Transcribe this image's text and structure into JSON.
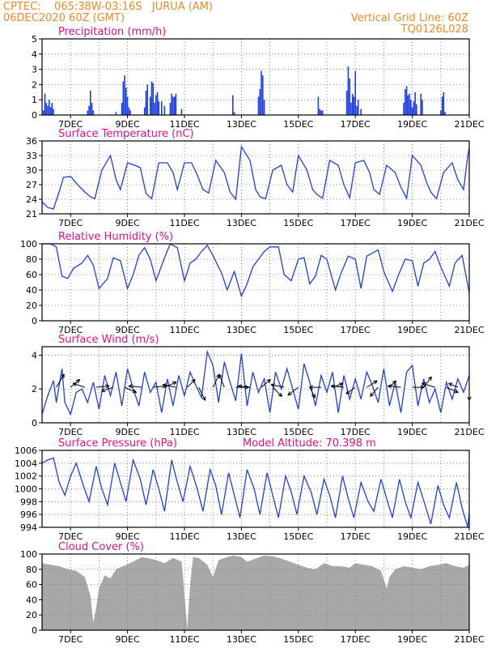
{
  "header": {
    "org_location": "CPTEC:    065:38W-03:16S   JURUA (AM)",
    "run_time": "06DEC2020 60Z (GMT)",
    "grid_note": "Vertical Grid Line: 60Z",
    "model_code": "TQ0126L028"
  },
  "colors": {
    "header_text": "#f08a24",
    "panel_title": "#e0108a",
    "series_line": "#1f3fe0",
    "bars": "#1f3fe0",
    "cloud_fill": "#a8a8a8",
    "arrows": "#000000"
  },
  "chart_data": [
    {
      "id": "precip",
      "type": "bar",
      "title": "Precipitation (mm/h)",
      "ylim": [
        0,
        5
      ],
      "yticks": [
        0,
        1,
        2,
        3,
        4,
        5
      ],
      "grid": true,
      "xticks": [
        "7DEC",
        "9DEC",
        "11DEC",
        "13DEC",
        "15DEC",
        "17DEC",
        "19DEC",
        "21DEC"
      ],
      "x_day_range": [
        6,
        21
      ],
      "day": [
        6.05,
        6.1,
        6.15,
        6.2,
        6.25,
        6.3,
        6.35,
        6.4,
        7.6,
        7.65,
        7.7,
        7.75,
        7.8,
        8.6,
        8.8,
        8.85,
        8.9,
        8.95,
        9.0,
        9.05,
        9.1,
        9.6,
        9.65,
        9.7,
        9.8,
        9.85,
        9.9,
        9.95,
        10.0,
        10.05,
        10.1,
        10.2,
        10.3,
        10.5,
        10.55,
        10.6,
        10.65,
        10.7,
        10.9,
        12.7,
        12.75,
        13.6,
        13.65,
        13.7,
        13.75,
        13.8,
        15.7,
        15.75,
        15.8,
        15.85,
        16.7,
        16.75,
        16.8,
        16.85,
        16.9,
        16.95,
        17.0,
        17.05,
        17.1,
        17.2,
        18.7,
        18.75,
        18.8,
        18.85,
        18.9,
        18.95,
        19.0,
        19.05,
        19.1,
        19.15,
        19.3,
        19.35,
        20.0,
        20.05,
        20.1,
        20.15
      ],
      "values": [
        0.3,
        1.4,
        0.8,
        0.6,
        1.0,
        0.5,
        0.8,
        0.4,
        0.3,
        0.6,
        1.6,
        0.8,
        0.3,
        0.2,
        0.8,
        2.2,
        2.6,
        1.8,
        1.2,
        0.5,
        0.3,
        0.5,
        1.6,
        2.0,
        1.2,
        2.2,
        2.1,
        0.8,
        1.3,
        1.5,
        0.9,
        0.9,
        0.6,
        0.8,
        1.4,
        1.2,
        1.2,
        1.4,
        0.4,
        1.3,
        0.2,
        1.2,
        1.7,
        2.9,
        2.6,
        1.0,
        1.2,
        0.4,
        0.3,
        0.3,
        1.6,
        3.2,
        2.4,
        0.8,
        1.4,
        1.2,
        2.9,
        0.6,
        1.0,
        0.4,
        0.8,
        1.7,
        1.9,
        1.3,
        1.4,
        1.0,
        0.5,
        0.9,
        1.5,
        0.7,
        1.4,
        1.0,
        0.3,
        1.2,
        1.5,
        0.2
      ]
    },
    {
      "id": "temp",
      "type": "line",
      "title": "Surface Temperature (nC)",
      "ylim": [
        21,
        36
      ],
      "yticks": [
        21,
        24,
        27,
        30,
        33,
        36
      ],
      "grid": true,
      "xticks": [
        "7DEC",
        "9DEC",
        "11DEC",
        "13DEC",
        "15DEC",
        "17DEC",
        "19DEC",
        "21DEC"
      ],
      "x_day_range": [
        6,
        21
      ],
      "day": [
        6.0,
        6.2,
        6.4,
        6.6,
        6.75,
        7.0,
        7.25,
        7.5,
        7.7,
        7.85,
        8.1,
        8.4,
        8.6,
        8.75,
        9.0,
        9.25,
        9.45,
        9.65,
        9.85,
        10.1,
        10.4,
        10.6,
        10.75,
        11.0,
        11.25,
        11.45,
        11.65,
        11.85,
        12.1,
        12.4,
        12.6,
        12.8,
        13.0,
        13.3,
        13.5,
        13.65,
        13.85,
        14.1,
        14.4,
        14.6,
        14.8,
        15.0,
        15.3,
        15.5,
        15.65,
        15.85,
        16.1,
        16.4,
        16.6,
        16.8,
        17.0,
        17.3,
        17.5,
        17.65,
        17.85,
        18.1,
        18.4,
        18.6,
        18.8,
        19.0,
        19.3,
        19.5,
        19.65,
        19.85,
        20.1,
        20.4,
        20.6,
        20.8,
        20.95,
        21.0
      ],
      "values": [
        23.5,
        22.3,
        22.0,
        25.5,
        28.5,
        28.7,
        27.0,
        25.5,
        24.5,
        24.1,
        30.0,
        33.0,
        28.0,
        26.0,
        31.5,
        31.0,
        30.5,
        25.2,
        24.1,
        31.5,
        31.5,
        29.5,
        26.0,
        31.5,
        31.5,
        29.0,
        26.0,
        25.3,
        32.0,
        29.5,
        25.5,
        24.0,
        34.8,
        32.0,
        26.0,
        24.5,
        24.1,
        30.0,
        31.0,
        27.0,
        25.5,
        33.0,
        30.0,
        26.0,
        25.0,
        24.2,
        32.0,
        31.0,
        27.0,
        24.3,
        31.5,
        32.0,
        29.5,
        26.0,
        25.0,
        31.0,
        29.5,
        26.5,
        24.2,
        33.0,
        31.0,
        27.5,
        25.5,
        24.1,
        29.5,
        31.5,
        28.0,
        26.0,
        33.0,
        34.5
      ]
    },
    {
      "id": "rh",
      "type": "line",
      "title": "Relative Humidity (%)",
      "ylim": [
        0,
        100
      ],
      "yticks": [
        0,
        20,
        40,
        60,
        80,
        100
      ],
      "grid": true,
      "xticks": [
        "7DEC",
        "9DEC",
        "11DEC",
        "13DEC",
        "15DEC",
        "17DEC",
        "19DEC",
        "21DEC"
      ],
      "x_day_range": [
        6,
        21
      ],
      "day": [
        6.0,
        6.3,
        6.5,
        6.7,
        6.9,
        7.1,
        7.4,
        7.6,
        7.8,
        8.0,
        8.3,
        8.5,
        8.75,
        9.0,
        9.2,
        9.4,
        9.6,
        9.8,
        10.0,
        10.3,
        10.5,
        10.75,
        11.0,
        11.2,
        11.4,
        11.6,
        11.8,
        12.0,
        12.3,
        12.5,
        12.75,
        13.0,
        13.2,
        13.4,
        13.6,
        13.8,
        14.0,
        14.3,
        14.5,
        14.75,
        15.0,
        15.2,
        15.4,
        15.6,
        15.8,
        16.0,
        16.3,
        16.5,
        16.75,
        17.0,
        17.2,
        17.4,
        17.6,
        17.8,
        18.0,
        18.3,
        18.5,
        18.75,
        19.0,
        19.2,
        19.4,
        19.6,
        19.8,
        20.0,
        20.3,
        20.5,
        20.75,
        21.0
      ],
      "values": [
        100,
        100,
        96,
        58,
        55,
        68,
        75,
        85,
        72,
        42,
        55,
        82,
        78,
        42,
        60,
        85,
        95,
        80,
        52,
        82,
        100,
        95,
        52,
        75,
        80,
        90,
        98,
        85,
        62,
        40,
        64,
        32,
        48,
        70,
        80,
        90,
        96,
        96,
        60,
        52,
        80,
        82,
        48,
        58,
        85,
        80,
        40,
        62,
        84,
        80,
        42,
        84,
        88,
        92,
        64,
        38,
        58,
        80,
        78,
        45,
        75,
        80,
        90,
        70,
        45,
        75,
        85,
        36
      ]
    },
    {
      "id": "wind",
      "type": "line",
      "title": "Surface Wind (m/s)",
      "ylim": [
        0,
        4.5
      ],
      "yticks": [
        0,
        2,
        4
      ],
      "grid": true,
      "xticks": [
        "7DEC",
        "9DEC",
        "11DEC",
        "13DEC",
        "15DEC",
        "17DEC",
        "19DEC",
        "21DEC"
      ],
      "x_day_range": [
        6,
        21
      ],
      "day": [
        6.0,
        6.2,
        6.4,
        6.5,
        6.7,
        6.8,
        7.0,
        7.2,
        7.4,
        7.6,
        7.8,
        8.0,
        8.2,
        8.4,
        8.6,
        8.8,
        9.0,
        9.2,
        9.4,
        9.6,
        9.8,
        10.0,
        10.2,
        10.4,
        10.6,
        10.8,
        11.0,
        11.2,
        11.4,
        11.6,
        11.8,
        12.0,
        12.2,
        12.4,
        12.6,
        12.8,
        13.0,
        13.2,
        13.4,
        13.6,
        13.8,
        14.0,
        14.2,
        14.4,
        14.6,
        14.8,
        15.0,
        15.2,
        15.4,
        15.6,
        15.8,
        16.0,
        16.2,
        16.4,
        16.6,
        16.8,
        17.0,
        17.2,
        17.4,
        17.6,
        17.8,
        18.0,
        18.2,
        18.4,
        18.6,
        18.8,
        19.0,
        19.2,
        19.4,
        19.6,
        19.8,
        20.0,
        20.2,
        20.4,
        20.6,
        20.8,
        21.0
      ],
      "values": [
        0.5,
        1.6,
        2.5,
        1.2,
        3.2,
        1.2,
        0.5,
        1.8,
        2.0,
        1.2,
        2.4,
        0.8,
        2.8,
        1.6,
        3.0,
        1.0,
        3.2,
        2.0,
        1.0,
        3.0,
        1.8,
        2.4,
        0.6,
        2.6,
        1.0,
        2.8,
        1.6,
        3.0,
        2.2,
        1.5,
        4.2,
        3.4,
        1.2,
        3.6,
        2.4,
        1.3,
        4.1,
        1.0,
        3.0,
        1.8,
        2.6,
        0.6,
        3.0,
        2.0,
        3.2,
        2.0,
        0.8,
        3.5,
        2.4,
        1.0,
        2.8,
        1.8,
        3.0,
        0.6,
        2.8,
        1.4,
        2.6,
        1.4,
        3.0,
        2.2,
        1.2,
        3.2,
        1.0,
        2.4,
        0.6,
        3.0,
        3.4,
        1.0,
        2.6,
        1.2,
        2.0,
        0.6,
        2.4,
        1.4,
        2.6,
        1.8,
        2.8
      ],
      "arrows_day": [
        6.5,
        7.0,
        7.5,
        7.9,
        8.5,
        8.9,
        9.5,
        9.9,
        10.3,
        10.7,
        11.1,
        11.5,
        12.0,
        12.4,
        12.8,
        13.3,
        13.7,
        14.1,
        14.5,
        15.0,
        15.4,
        15.8,
        16.2,
        16.6,
        17.0,
        17.4,
        17.8,
        18.2,
        18.6,
        19.0,
        19.4,
        19.8,
        20.2,
        20.6,
        21.0
      ],
      "arrows_u": [
        0.6,
        0.7,
        -0.9,
        1.0,
        -0.9,
        0.9,
        -1.0,
        1.0,
        0.9,
        -1.0,
        0.6,
        0.5,
        0.5,
        -0.4,
        1.0,
        -0.9,
        0.7,
        0.7,
        -1.0,
        -0.8,
        0.4,
        -0.9,
        0.8,
        -1.0,
        -0.7,
        0.8,
        -0.6,
        0.5,
        -1.0,
        0.9,
        0.6,
        -1.0,
        0.9,
        -0.7,
        0.0
      ],
      "arrows_v": [
        1.0,
        0.6,
        0.3,
        0.1,
        -0.3,
        -0.4,
        0.1,
        0.1,
        0.4,
        0.2,
        0.6,
        -1.0,
        1.0,
        1.0,
        0.0,
        0.1,
        0.6,
        -0.7,
        0.2,
        -0.6,
        -0.8,
        0.0,
        0.3,
        0.1,
        -0.5,
        0.5,
        -0.7,
        0.5,
        0.1,
        0.0,
        0.8,
        0.3,
        -0.4,
        0.3,
        -1.0
      ]
    },
    {
      "id": "pres",
      "type": "line",
      "title": "Surface Pressure (hPa)",
      "subtitle": "Model Altitude: 70.398  m",
      "ylim": [
        994,
        1006
      ],
      "yticks": [
        994,
        996,
        998,
        1000,
        1002,
        1004,
        1006
      ],
      "grid": true,
      "xticks": [
        "7DEC",
        "9DEC",
        "11DEC",
        "13DEC",
        "15DEC",
        "17DEC",
        "19DEC",
        "21DEC"
      ],
      "x_day_range": [
        6,
        21
      ],
      "day": [
        6.0,
        6.2,
        6.4,
        6.6,
        6.8,
        7.0,
        7.2,
        7.45,
        7.65,
        7.9,
        8.1,
        8.3,
        8.55,
        8.75,
        8.95,
        9.2,
        9.45,
        9.65,
        9.9,
        10.1,
        10.3,
        10.55,
        10.75,
        10.95,
        11.2,
        11.45,
        11.65,
        11.9,
        12.1,
        12.3,
        12.55,
        12.75,
        12.95,
        13.2,
        13.45,
        13.65,
        13.9,
        14.1,
        14.3,
        14.55,
        14.75,
        14.95,
        15.2,
        15.45,
        15.65,
        15.9,
        16.1,
        16.3,
        16.55,
        16.75,
        16.95,
        17.2,
        17.45,
        17.65,
        17.9,
        18.1,
        18.3,
        18.55,
        18.75,
        18.95,
        19.2,
        19.45,
        19.65,
        19.9,
        20.1,
        20.3,
        20.55,
        20.75,
        20.95,
        21.0
      ],
      "values": [
        1004.0,
        1004.5,
        1004.8,
        1001.0,
        999.0,
        1002.0,
        1004.0,
        1000.5,
        998.0,
        1003.5,
        1000.0,
        997.5,
        1004.0,
        1001.0,
        998.0,
        1004.5,
        1001.5,
        997.5,
        1003.0,
        1000.0,
        996.5,
        1004.5,
        1001.0,
        998.0,
        1003.5,
        1000.0,
        996.5,
        1003.0,
        1000.5,
        996.0,
        1002.5,
        999.0,
        995.5,
        1003.0,
        1000.0,
        996.0,
        1002.5,
        999.0,
        995.5,
        1002.0,
        999.5,
        996.0,
        1002.0,
        999.5,
        996.0,
        1001.5,
        999.0,
        995.5,
        1002.0,
        998.5,
        995.5,
        1001.0,
        998.0,
        996.5,
        1001.5,
        998.5,
        995.5,
        1001.5,
        998.0,
        995.5,
        1001.0,
        997.5,
        994.5,
        1000.5,
        997.5,
        995.5,
        1001.0,
        997.0,
        994.0,
        996.2
      ]
    },
    {
      "id": "cloud",
      "type": "area",
      "title": "Cloud Cover (%)",
      "ylim": [
        0,
        100
      ],
      "yticks": [
        0,
        20,
        40,
        60,
        80,
        100
      ],
      "grid": true,
      "xticks": [
        "7DEC",
        "9DEC",
        "11DEC",
        "13DEC",
        "15DEC",
        "17DEC",
        "19DEC",
        "21DEC"
      ],
      "x_day_range": [
        6,
        21
      ],
      "day": [
        6.0,
        6.3,
        6.6,
        6.9,
        7.2,
        7.5,
        7.7,
        7.8,
        7.9,
        8.0,
        8.2,
        8.4,
        8.6,
        8.9,
        9.2,
        9.5,
        9.8,
        10.0,
        10.3,
        10.6,
        10.9,
        11.1,
        11.2,
        11.3,
        11.5,
        11.8,
        12.0,
        12.2,
        12.4,
        12.7,
        13.0,
        13.2,
        13.5,
        13.8,
        14.1,
        14.4,
        14.7,
        15.0,
        15.3,
        15.6,
        15.9,
        16.2,
        16.5,
        16.8,
        17.0,
        17.3,
        17.6,
        17.9,
        18.1,
        18.2,
        18.4,
        18.7,
        19.0,
        19.3,
        19.6,
        19.9,
        20.2,
        20.5,
        20.8,
        21.0
      ],
      "values": [
        88,
        86,
        84,
        80,
        78,
        70,
        45,
        10,
        30,
        55,
        72,
        68,
        80,
        85,
        90,
        96,
        94,
        92,
        88,
        95,
        90,
        2,
        60,
        96,
        95,
        86,
        70,
        92,
        95,
        98,
        96,
        90,
        94,
        98,
        97,
        94,
        90,
        86,
        82,
        80,
        88,
        84,
        84,
        82,
        88,
        86,
        84,
        78,
        55,
        70,
        80,
        84,
        82,
        80,
        84,
        86,
        88,
        84,
        82,
        86
      ]
    }
  ]
}
